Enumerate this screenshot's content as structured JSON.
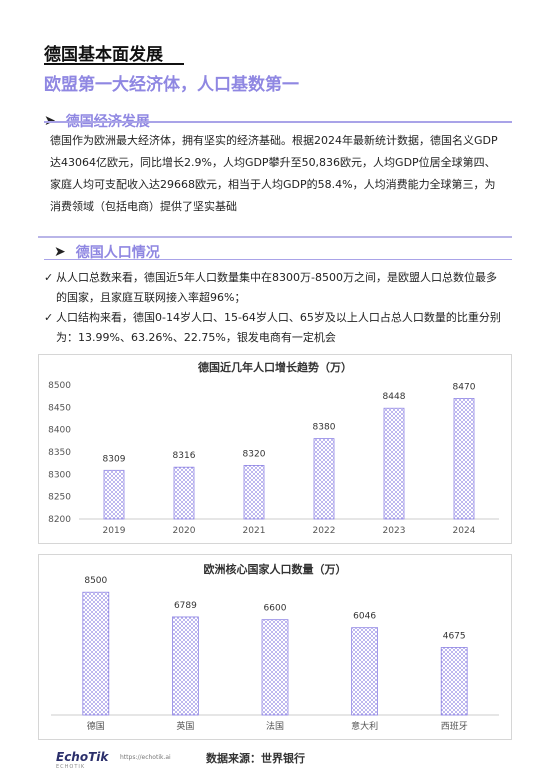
{
  "header": {
    "title": "德国基本面发展",
    "subtitle": "欧盟第一大经济体，人口基数第一"
  },
  "economy": {
    "heading": "德国经济发展",
    "paragraph": "德国作为欧洲最大经济体，拥有坚实的经济基础。根据2024年最新统计数据，德国名义GDP达43064亿欧元，同比增长2.9%，人均GDP攀升至50,836欧元，人均GDP位居全球第四、家庭人均可支配收入达29668欧元，相当于人均GDP的58.4%，人均消费能力全球第三，为消费领域（包括电商）提供了坚实基础"
  },
  "population": {
    "heading": "德国人口情况",
    "bullets": [
      "从人口总数来看，德国近5年人口数量集中在8300万-8500万之间，是欧盟人口总数位最多的国家，且家庭互联网接入率超96%；",
      "人口结构来看，德国0-14岁人口、15-64岁人口、65岁及以上人口占总人口数量的比重分别为：13.99%、63.26%、22.75%，银发电商有一定机会"
    ],
    "check_glyph": "✓"
  },
  "chart_data": [
    {
      "type": "bar",
      "title": "德国近几年人口增长趋势（万）",
      "categories": [
        "2019",
        "2020",
        "2021",
        "2022",
        "2023",
        "2024"
      ],
      "values": [
        8309,
        8316,
        8320,
        8380,
        8448,
        8470
      ],
      "ylim": [
        8200,
        8500
      ],
      "yticks": [
        8200,
        8250,
        8300,
        8350,
        8400,
        8450,
        8500
      ],
      "bar_color": "#a49bea",
      "grid": false
    },
    {
      "type": "bar",
      "title": "欧洲核心国家人口数量（万）",
      "categories": [
        "德国",
        "英国",
        "法国",
        "意大利",
        "西班牙"
      ],
      "values": [
        8500,
        6789,
        6600,
        6046,
        4675
      ],
      "ylim": [
        0,
        9000
      ],
      "bar_color": "#a49bea",
      "grid": false
    }
  ],
  "footer": {
    "logo": "EchoTik",
    "logo_sub": "ECHOTIK",
    "url": "https://echotik.ai",
    "source": "数据来源：世界银行"
  },
  "icons": {
    "section_arrow": "chevron-right-icon"
  }
}
